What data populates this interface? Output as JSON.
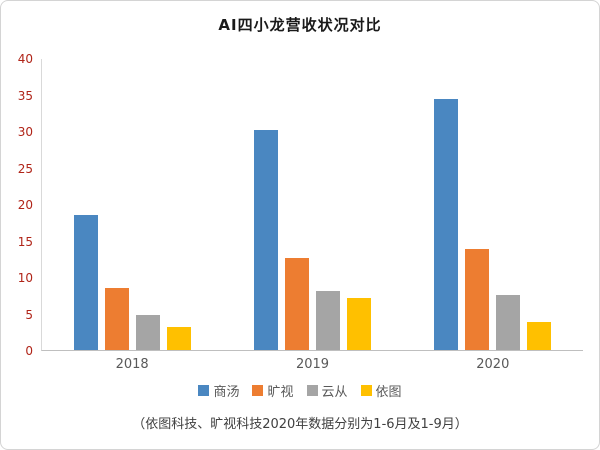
{
  "chart_data": {
    "type": "bar",
    "title": "AI四小龙营收状况对比",
    "categories": [
      "2018",
      "2019",
      "2020"
    ],
    "series": [
      {
        "name": "商汤",
        "color": "#4a87c1",
        "values": [
          18.5,
          30.3,
          34.5
        ]
      },
      {
        "name": "旷视",
        "color": "#ED7D31",
        "values": [
          8.5,
          12.7,
          13.9
        ]
      },
      {
        "name": "云从",
        "color": "#A5A5A5",
        "values": [
          4.8,
          8.1,
          7.6
        ]
      },
      {
        "name": "依图",
        "color": "#FFC000",
        "values": [
          3.1,
          7.2,
          3.8
        ]
      }
    ],
    "ylim": [
      0,
      40
    ],
    "ytick_step": 5,
    "grid": false,
    "legend_position": "bottom",
    "tick_color": "#b02418",
    "axis_color": "#bfbfbf",
    "footnote": "（依图科技、旷视科技2020年数据分别为1-6月及1-9月）"
  }
}
